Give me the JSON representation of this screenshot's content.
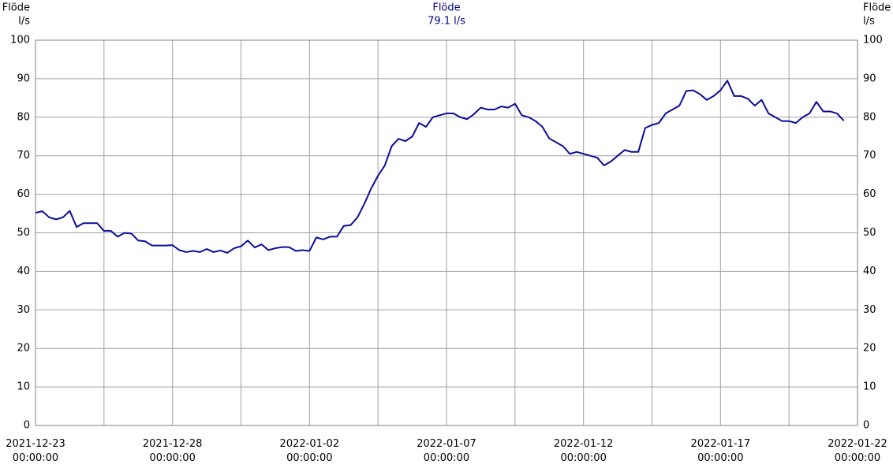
{
  "chart_data": {
    "type": "line",
    "title": "Flöde",
    "subtitle": "79.1 l/s",
    "ylabel": "Flöde",
    "yunit": "l/s",
    "y2label": "Flöde",
    "y2unit": "l/s",
    "xlim": [
      "2021-12-23 00:00:00",
      "2022-01-22 00:00:00"
    ],
    "xticks": [
      "2021-12-23 00:00:00",
      "2021-12-28 00:00:00",
      "2022-01-02 00:00:00",
      "2022-01-07 00:00:00",
      "2022-01-12 00:00:00",
      "2022-01-17 00:00:00",
      "2022-01-22 00:00:00"
    ],
    "ylim": [
      0,
      100
    ],
    "yticks": [
      0,
      10,
      20,
      30,
      40,
      50,
      60,
      70,
      80,
      90,
      100
    ],
    "y2lim": [
      0,
      100
    ],
    "y2ticks": [
      0,
      10,
      20,
      30,
      40,
      50,
      60,
      70,
      80,
      90,
      100
    ],
    "grid": true,
    "x": [
      "2021-12-23 00:00",
      "2021-12-23 06:00",
      "2021-12-23 12:00",
      "2021-12-23 18:00",
      "2021-12-24 00:00",
      "2021-12-24 06:00",
      "2021-12-24 12:00",
      "2021-12-24 18:00",
      "2021-12-25 00:00",
      "2021-12-25 06:00",
      "2021-12-25 12:00",
      "2021-12-25 18:00",
      "2021-12-26 00:00",
      "2021-12-26 06:00",
      "2021-12-26 12:00",
      "2021-12-26 18:00",
      "2021-12-27 00:00",
      "2021-12-27 06:00",
      "2021-12-27 12:00",
      "2021-12-27 18:00",
      "2021-12-28 00:00",
      "2021-12-28 06:00",
      "2021-12-28 12:00",
      "2021-12-28 18:00",
      "2021-12-29 00:00",
      "2021-12-29 06:00",
      "2021-12-29 12:00",
      "2021-12-29 18:00",
      "2021-12-30 00:00",
      "2021-12-30 06:00",
      "2021-12-30 12:00",
      "2021-12-30 18:00",
      "2021-12-31 00:00",
      "2021-12-31 06:00",
      "2021-12-31 12:00",
      "2021-12-31 18:00",
      "2022-01-01 00:00",
      "2022-01-01 06:00",
      "2022-01-01 12:00",
      "2022-01-01 18:00",
      "2022-01-02 00:00",
      "2022-01-02 06:00",
      "2022-01-02 12:00",
      "2022-01-02 18:00",
      "2022-01-03 00:00",
      "2022-01-03 06:00",
      "2022-01-03 12:00",
      "2022-01-03 18:00",
      "2022-01-04 00:00",
      "2022-01-04 06:00",
      "2022-01-04 12:00",
      "2022-01-04 18:00",
      "2022-01-05 00:00",
      "2022-01-05 06:00",
      "2022-01-05 12:00",
      "2022-01-05 18:00",
      "2022-01-06 00:00",
      "2022-01-06 06:00",
      "2022-01-06 12:00",
      "2022-01-06 18:00",
      "2022-01-07 00:00",
      "2022-01-07 06:00",
      "2022-01-07 12:00",
      "2022-01-07 18:00",
      "2022-01-08 00:00",
      "2022-01-08 06:00",
      "2022-01-08 12:00",
      "2022-01-08 18:00",
      "2022-01-09 00:00",
      "2022-01-09 06:00",
      "2022-01-09 12:00",
      "2022-01-09 18:00",
      "2022-01-10 00:00",
      "2022-01-10 06:00",
      "2022-01-10 12:00",
      "2022-01-10 18:00",
      "2022-01-11 00:00",
      "2022-01-11 06:00",
      "2022-01-11 12:00",
      "2022-01-11 18:00",
      "2022-01-12 00:00",
      "2022-01-12 06:00",
      "2022-01-12 12:00",
      "2022-01-12 18:00",
      "2022-01-13 00:00",
      "2022-01-13 06:00",
      "2022-01-13 12:00",
      "2022-01-13 18:00",
      "2022-01-14 00:00",
      "2022-01-14 06:00",
      "2022-01-14 12:00",
      "2022-01-14 18:00",
      "2022-01-15 00:00",
      "2022-01-15 06:00",
      "2022-01-15 12:00",
      "2022-01-15 18:00",
      "2022-01-16 00:00",
      "2022-01-16 06:00",
      "2022-01-16 12:00",
      "2022-01-16 18:00",
      "2022-01-17 00:00",
      "2022-01-17 06:00",
      "2022-01-17 12:00",
      "2022-01-17 18:00",
      "2022-01-18 00:00",
      "2022-01-18 06:00",
      "2022-01-18 12:00",
      "2022-01-18 18:00",
      "2022-01-19 00:00",
      "2022-01-19 06:00",
      "2022-01-19 12:00",
      "2022-01-19 18:00",
      "2022-01-20 00:00",
      "2022-01-20 06:00",
      "2022-01-20 12:00",
      "2022-01-20 18:00",
      "2022-01-21 00:00",
      "2022-01-21 06:00",
      "2022-01-21 12:00"
    ],
    "series": [
      {
        "name": "Flöde",
        "color": "#0c0c96",
        "values": [
          55.2,
          55.6,
          54.0,
          53.5,
          54.0,
          55.7,
          51.5,
          52.5,
          52.5,
          52.5,
          50.5,
          50.5,
          49.0,
          50.0,
          49.8,
          48.0,
          47.8,
          46.7,
          46.7,
          46.7,
          46.8,
          45.5,
          45.0,
          45.3,
          45.0,
          45.8,
          45.0,
          45.4,
          44.8,
          46.0,
          46.5,
          48.0,
          46.2,
          47.0,
          45.5,
          46.0,
          46.3,
          46.3,
          45.3,
          45.5,
          45.3,
          48.8,
          48.3,
          49.0,
          49.0,
          51.8,
          52.0,
          54.0,
          57.5,
          61.5,
          64.8,
          67.5,
          72.5,
          74.4,
          73.8,
          75.0,
          78.5,
          77.5,
          80.0,
          80.5,
          81.0,
          81.0,
          80.0,
          79.5,
          80.8,
          82.5,
          82.0,
          82.0,
          82.8,
          82.5,
          83.5,
          80.5,
          80.0,
          79.0,
          77.5,
          74.5,
          73.5,
          72.5,
          70.5,
          71.0,
          70.5,
          70.0,
          69.5,
          67.5,
          68.5,
          70.0,
          71.5,
          71.0,
          71.0,
          77.2,
          78.0,
          78.5,
          81.0,
          82.0,
          83.0,
          86.8,
          87.0,
          86.0,
          84.5,
          85.5,
          87.0,
          89.5,
          85.5,
          85.5,
          84.8,
          83.0,
          84.5,
          81.0,
          80.0,
          79.0,
          79.0,
          78.5,
          80.0,
          81.0,
          84.0,
          81.5,
          81.5,
          81.0,
          79.1
        ]
      }
    ]
  }
}
